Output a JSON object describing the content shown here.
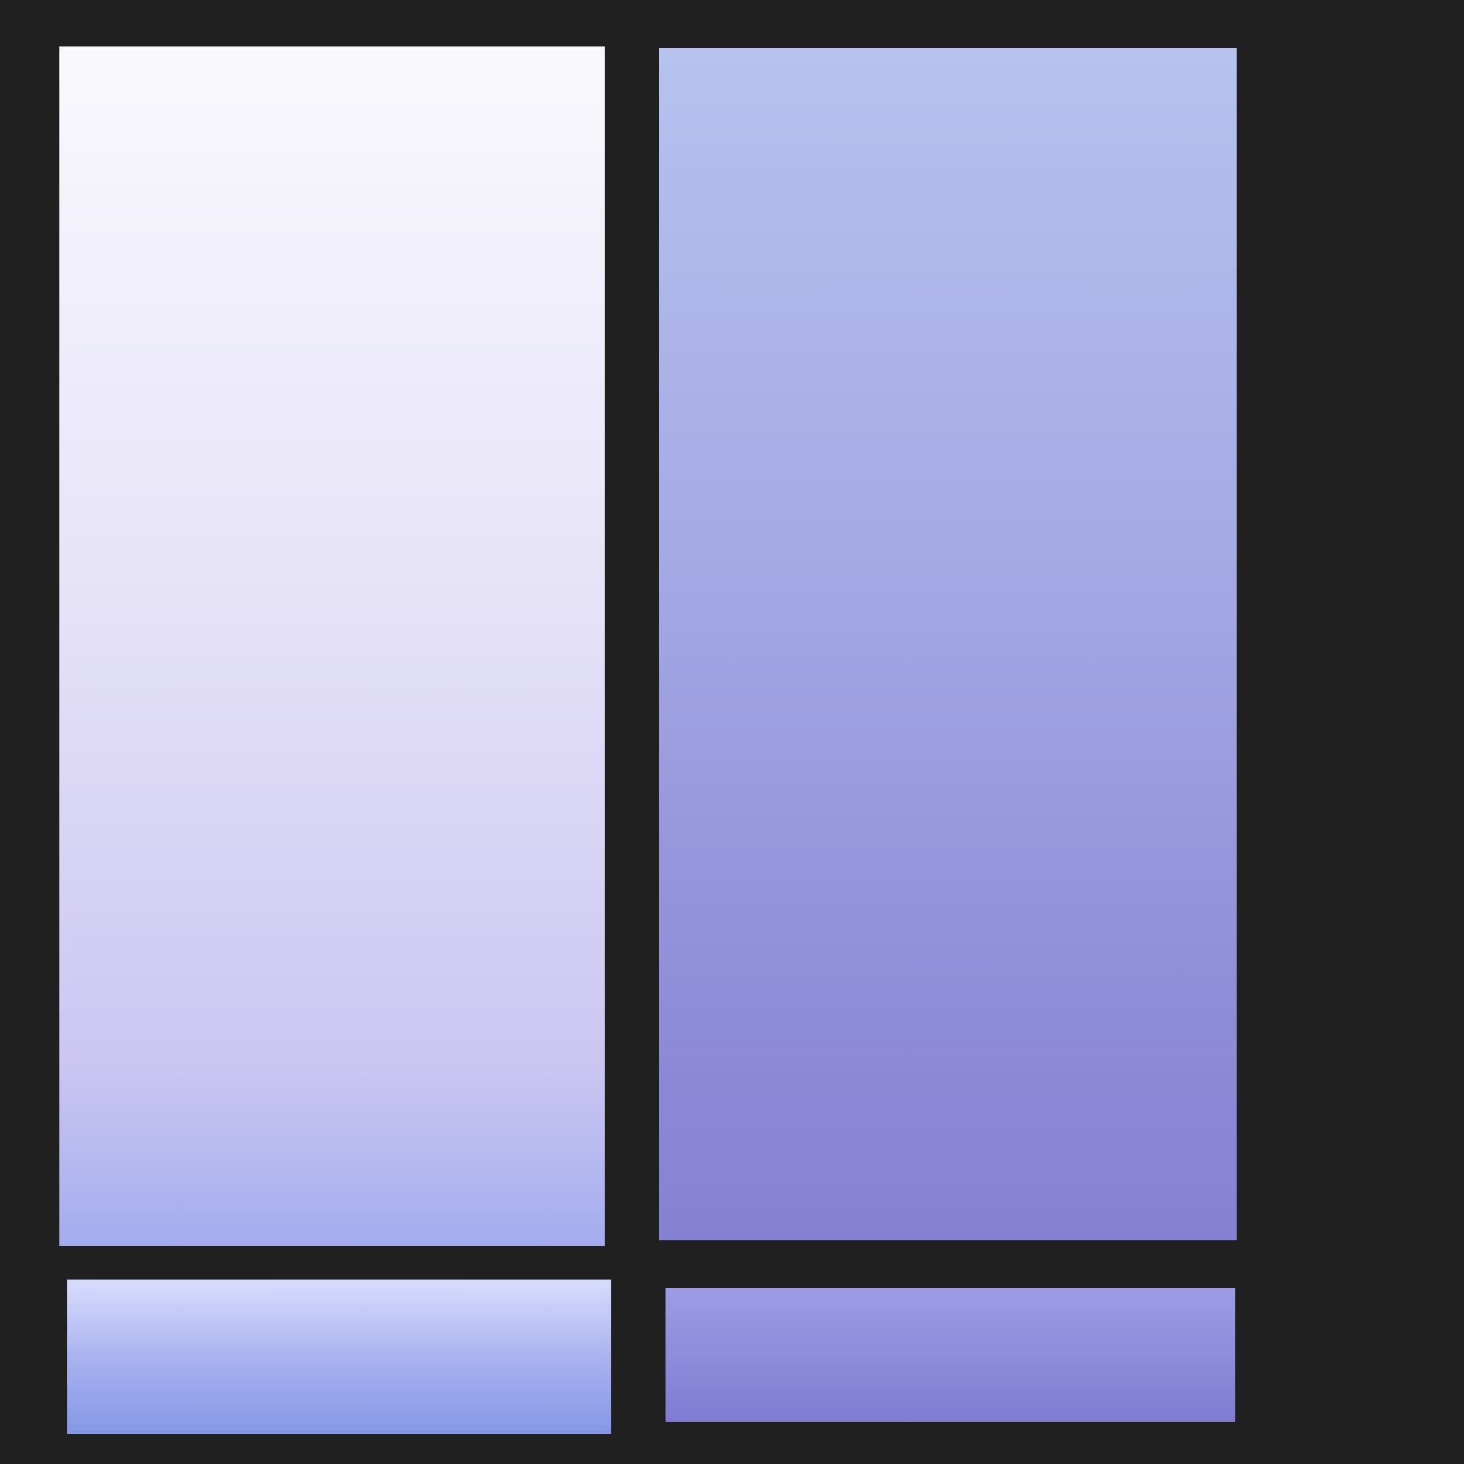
{
  "background": "#202020",
  "swatches": [
    {
      "name": "tall-light-panel",
      "stops": [
        {
          "color": "#f9f9fd",
          "at": 0
        },
        {
          "color": "#e6e3f8",
          "at": 0.45
        },
        {
          "color": "#cbc6f1",
          "at": 0.85
        },
        {
          "color": "#a3acee",
          "at": 1
        }
      ]
    },
    {
      "name": "tall-lavender-panel",
      "stops": [
        {
          "color": "#b6c2ef",
          "at": 0
        },
        {
          "color": "#a3a8e4",
          "at": 0.45
        },
        {
          "color": "#8d89d6",
          "at": 0.85
        },
        {
          "color": "#8781d4",
          "at": 1
        }
      ]
    },
    {
      "name": "short-blue-panel",
      "stops": [
        {
          "color": "#d8dcfb",
          "at": 0
        },
        {
          "color": "#aab3f0",
          "at": 0.5
        },
        {
          "color": "#8597e6",
          "at": 1
        }
      ]
    },
    {
      "name": "short-violet-panel",
      "stops": [
        {
          "color": "#9d9ce6",
          "at": 0
        },
        {
          "color": "#8d8bda",
          "at": 0.55
        },
        {
          "color": "#807bd3",
          "at": 1
        }
      ]
    }
  ]
}
